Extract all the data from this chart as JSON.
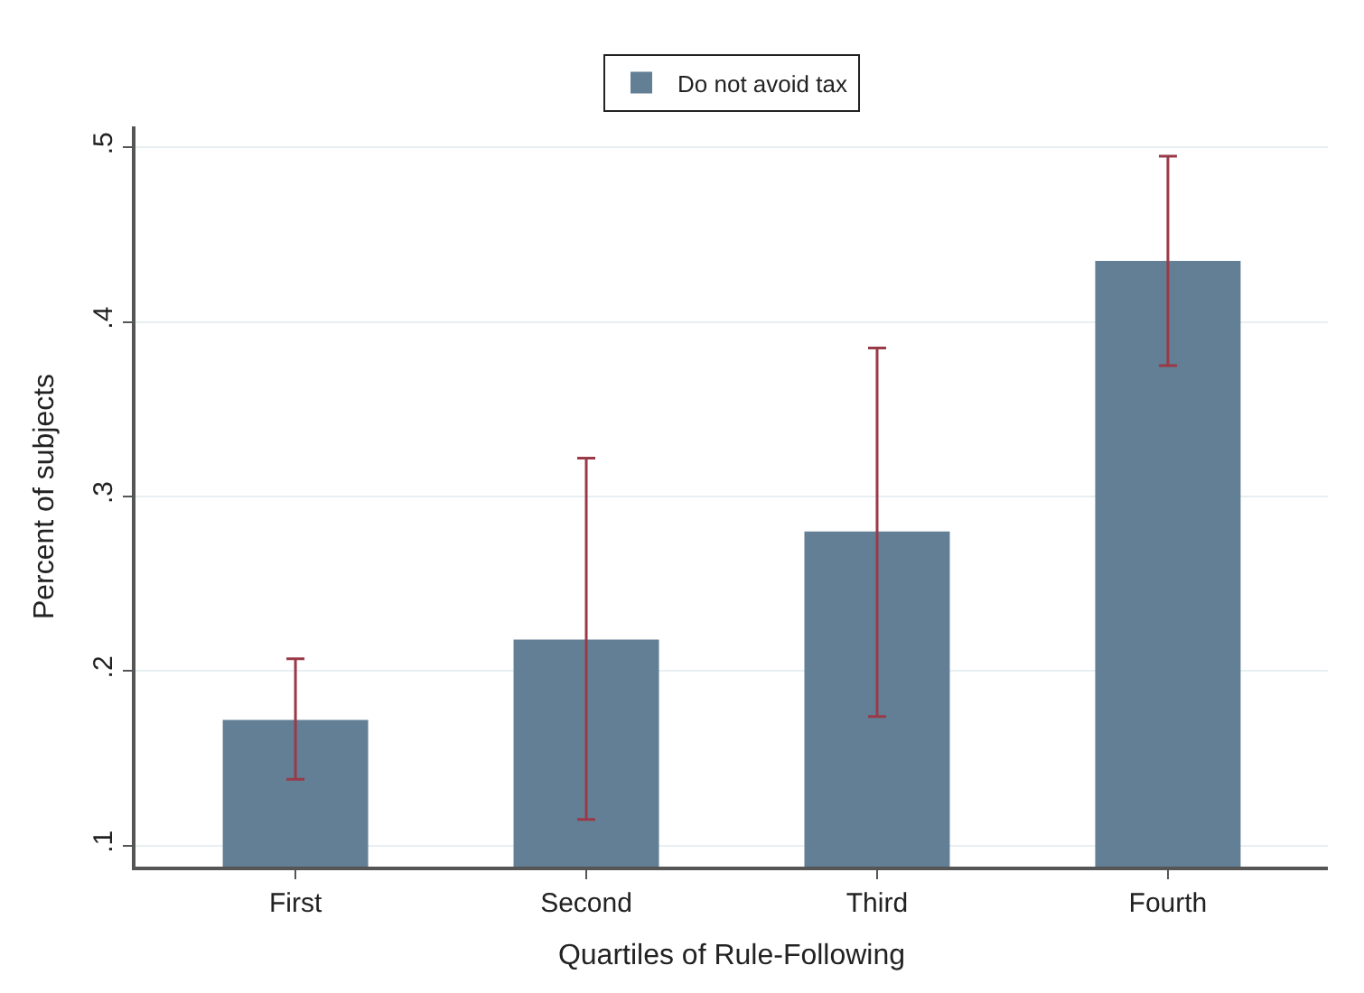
{
  "chart_data": {
    "type": "bar",
    "xlabel": "Quartiles of Rule-Following",
    "ylabel": "Percent of subjects",
    "categories": [
      "First",
      "Second",
      "Third",
      "Fourth"
    ],
    "series": [
      {
        "name": "Do not avoid tax",
        "color": "#627f95",
        "values": [
          0.172,
          0.218,
          0.28,
          0.435
        ],
        "errors": [
          [
            0.138,
            0.207
          ],
          [
            0.115,
            0.322
          ],
          [
            0.174,
            0.385
          ],
          [
            0.375,
            0.495
          ]
        ]
      }
    ],
    "ylim": [
      0.088,
      0.512
    ],
    "yticks": [
      {
        "value": 0.1,
        "label": ".1"
      },
      {
        "value": 0.2,
        "label": ".2"
      },
      {
        "value": 0.3,
        "label": ".3"
      },
      {
        "value": 0.4,
        "label": ".4"
      },
      {
        "value": 0.5,
        "label": ".5"
      }
    ],
    "grid": "y",
    "legend": "top"
  }
}
